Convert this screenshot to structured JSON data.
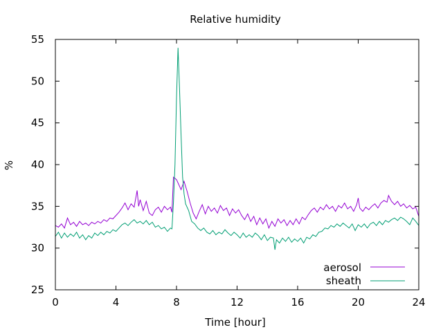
{
  "chart_data": {
    "type": "line",
    "title": "Relative humidity",
    "xlabel": "Time [hour]",
    "ylabel": "%",
    "xlim": [
      0,
      24
    ],
    "ylim": [
      25,
      55
    ],
    "xticks": [
      0,
      4,
      8,
      12,
      16,
      20,
      24
    ],
    "yticks": [
      25,
      30,
      35,
      40,
      45,
      50,
      55
    ],
    "grid": false,
    "legend_position": "bottom-right",
    "series": [
      {
        "name": "aerosol",
        "color": "#9400d3",
        "points": [
          [
            0.0,
            32.7
          ],
          [
            0.2,
            32.5
          ],
          [
            0.4,
            32.9
          ],
          [
            0.6,
            32.4
          ],
          [
            0.8,
            33.6
          ],
          [
            1.0,
            32.8
          ],
          [
            1.2,
            33.1
          ],
          [
            1.4,
            32.6
          ],
          [
            1.6,
            33.2
          ],
          [
            1.8,
            32.8
          ],
          [
            2.0,
            33.0
          ],
          [
            2.2,
            32.7
          ],
          [
            2.4,
            33.1
          ],
          [
            2.6,
            32.9
          ],
          [
            2.8,
            33.2
          ],
          [
            3.0,
            33.0
          ],
          [
            3.2,
            33.4
          ],
          [
            3.4,
            33.2
          ],
          [
            3.6,
            33.6
          ],
          [
            3.8,
            33.5
          ],
          [
            4.0,
            33.9
          ],
          [
            4.2,
            34.3
          ],
          [
            4.4,
            34.8
          ],
          [
            4.6,
            35.4
          ],
          [
            4.8,
            34.6
          ],
          [
            5.0,
            35.3
          ],
          [
            5.2,
            34.9
          ],
          [
            5.4,
            36.9
          ],
          [
            5.5,
            35.0
          ],
          [
            5.6,
            35.8
          ],
          [
            5.8,
            34.5
          ],
          [
            6.0,
            35.6
          ],
          [
            6.2,
            34.2
          ],
          [
            6.4,
            33.9
          ],
          [
            6.6,
            34.6
          ],
          [
            6.8,
            34.9
          ],
          [
            7.0,
            34.3
          ],
          [
            7.2,
            35.0
          ],
          [
            7.4,
            34.6
          ],
          [
            7.6,
            34.9
          ],
          [
            7.7,
            34.3
          ],
          [
            7.8,
            38.5
          ],
          [
            8.0,
            38.2
          ],
          [
            8.1,
            37.8
          ],
          [
            8.3,
            37.0
          ],
          [
            8.5,
            38.0
          ],
          [
            8.7,
            36.8
          ],
          [
            8.9,
            35.4
          ],
          [
            9.1,
            34.2
          ],
          [
            9.3,
            33.5
          ],
          [
            9.5,
            34.4
          ],
          [
            9.7,
            35.2
          ],
          [
            9.9,
            34.1
          ],
          [
            10.1,
            35.0
          ],
          [
            10.3,
            34.4
          ],
          [
            10.5,
            34.8
          ],
          [
            10.7,
            34.2
          ],
          [
            10.9,
            35.1
          ],
          [
            11.1,
            34.5
          ],
          [
            11.3,
            34.8
          ],
          [
            11.5,
            33.9
          ],
          [
            11.7,
            34.7
          ],
          [
            11.9,
            34.2
          ],
          [
            12.1,
            34.6
          ],
          [
            12.3,
            33.9
          ],
          [
            12.5,
            33.4
          ],
          [
            12.7,
            34.1
          ],
          [
            12.9,
            33.2
          ],
          [
            13.1,
            33.8
          ],
          [
            13.3,
            32.8
          ],
          [
            13.5,
            33.6
          ],
          [
            13.7,
            32.9
          ],
          [
            13.9,
            33.5
          ],
          [
            14.1,
            32.4
          ],
          [
            14.3,
            33.2
          ],
          [
            14.5,
            32.6
          ],
          [
            14.7,
            33.5
          ],
          [
            14.9,
            33.0
          ],
          [
            15.1,
            33.4
          ],
          [
            15.3,
            32.7
          ],
          [
            15.5,
            33.3
          ],
          [
            15.7,
            32.8
          ],
          [
            15.9,
            33.5
          ],
          [
            16.1,
            32.9
          ],
          [
            16.3,
            33.7
          ],
          [
            16.5,
            33.4
          ],
          [
            16.7,
            34.0
          ],
          [
            16.9,
            34.5
          ],
          [
            17.1,
            34.8
          ],
          [
            17.3,
            34.3
          ],
          [
            17.5,
            34.9
          ],
          [
            17.7,
            34.6
          ],
          [
            17.9,
            35.2
          ],
          [
            18.1,
            34.7
          ],
          [
            18.3,
            35.0
          ],
          [
            18.5,
            34.4
          ],
          [
            18.7,
            35.1
          ],
          [
            18.9,
            34.8
          ],
          [
            19.1,
            35.4
          ],
          [
            19.3,
            34.7
          ],
          [
            19.5,
            35.0
          ],
          [
            19.7,
            34.4
          ],
          [
            19.9,
            35.2
          ],
          [
            20.0,
            36.0
          ],
          [
            20.1,
            34.8
          ],
          [
            20.3,
            34.4
          ],
          [
            20.5,
            34.9
          ],
          [
            20.7,
            34.6
          ],
          [
            20.9,
            35.0
          ],
          [
            21.1,
            35.3
          ],
          [
            21.3,
            34.8
          ],
          [
            21.5,
            35.4
          ],
          [
            21.7,
            35.7
          ],
          [
            21.9,
            35.5
          ],
          [
            22.0,
            36.3
          ],
          [
            22.2,
            35.6
          ],
          [
            22.4,
            35.2
          ],
          [
            22.6,
            35.6
          ],
          [
            22.8,
            35.0
          ],
          [
            23.0,
            35.3
          ],
          [
            23.2,
            34.8
          ],
          [
            23.4,
            35.1
          ],
          [
            23.6,
            34.7
          ],
          [
            23.8,
            34.9
          ],
          [
            24.0,
            33.8
          ]
        ]
      },
      {
        "name": "sheath",
        "color": "#009e73",
        "points": [
          [
            0.0,
            31.4
          ],
          [
            0.2,
            31.9
          ],
          [
            0.4,
            31.2
          ],
          [
            0.6,
            31.8
          ],
          [
            0.8,
            31.3
          ],
          [
            1.0,
            31.7
          ],
          [
            1.2,
            31.4
          ],
          [
            1.4,
            31.9
          ],
          [
            1.6,
            31.2
          ],
          [
            1.8,
            31.6
          ],
          [
            2.0,
            31.0
          ],
          [
            2.2,
            31.5
          ],
          [
            2.4,
            31.2
          ],
          [
            2.6,
            31.8
          ],
          [
            2.8,
            31.5
          ],
          [
            3.0,
            31.9
          ],
          [
            3.2,
            31.6
          ],
          [
            3.4,
            32.0
          ],
          [
            3.6,
            31.8
          ],
          [
            3.8,
            32.2
          ],
          [
            4.0,
            32.0
          ],
          [
            4.2,
            32.4
          ],
          [
            4.4,
            32.8
          ],
          [
            4.6,
            33.0
          ],
          [
            4.8,
            32.7
          ],
          [
            5.0,
            33.1
          ],
          [
            5.2,
            33.4
          ],
          [
            5.4,
            33.0
          ],
          [
            5.6,
            33.2
          ],
          [
            5.8,
            32.9
          ],
          [
            6.0,
            33.3
          ],
          [
            6.2,
            32.8
          ],
          [
            6.4,
            33.1
          ],
          [
            6.6,
            32.5
          ],
          [
            6.8,
            32.7
          ],
          [
            7.0,
            32.3
          ],
          [
            7.2,
            32.5
          ],
          [
            7.4,
            32.0
          ],
          [
            7.6,
            32.4
          ],
          [
            7.7,
            32.3
          ],
          [
            7.8,
            35.5
          ],
          [
            7.9,
            40.0
          ],
          [
            8.0,
            48.0
          ],
          [
            8.1,
            54.0
          ],
          [
            8.2,
            49.0
          ],
          [
            8.3,
            43.5
          ],
          [
            8.4,
            38.5
          ],
          [
            8.5,
            36.5
          ],
          [
            8.6,
            35.3
          ],
          [
            8.8,
            34.5
          ],
          [
            9.0,
            33.2
          ],
          [
            9.2,
            32.9
          ],
          [
            9.4,
            32.4
          ],
          [
            9.6,
            32.1
          ],
          [
            9.8,
            32.4
          ],
          [
            10.0,
            31.9
          ],
          [
            10.2,
            31.7
          ],
          [
            10.4,
            32.1
          ],
          [
            10.6,
            31.6
          ],
          [
            10.8,
            31.9
          ],
          [
            11.0,
            31.7
          ],
          [
            11.2,
            32.2
          ],
          [
            11.4,
            31.8
          ],
          [
            11.6,
            31.5
          ],
          [
            11.8,
            31.9
          ],
          [
            12.0,
            31.6
          ],
          [
            12.2,
            31.2
          ],
          [
            12.4,
            31.8
          ],
          [
            12.6,
            31.3
          ],
          [
            12.8,
            31.6
          ],
          [
            13.0,
            31.3
          ],
          [
            13.2,
            31.8
          ],
          [
            13.4,
            31.5
          ],
          [
            13.6,
            31.0
          ],
          [
            13.8,
            31.6
          ],
          [
            14.0,
            30.9
          ],
          [
            14.2,
            31.3
          ],
          [
            14.4,
            31.2
          ],
          [
            14.5,
            29.8
          ],
          [
            14.6,
            31.0
          ],
          [
            14.8,
            30.6
          ],
          [
            15.0,
            31.2
          ],
          [
            15.2,
            30.8
          ],
          [
            15.4,
            31.3
          ],
          [
            15.6,
            30.7
          ],
          [
            15.8,
            31.1
          ],
          [
            16.0,
            30.8
          ],
          [
            16.2,
            31.2
          ],
          [
            16.4,
            30.6
          ],
          [
            16.6,
            31.3
          ],
          [
            16.8,
            31.1
          ],
          [
            17.0,
            31.6
          ],
          [
            17.2,
            31.4
          ],
          [
            17.4,
            31.9
          ],
          [
            17.6,
            32.0
          ],
          [
            17.8,
            32.4
          ],
          [
            18.0,
            32.3
          ],
          [
            18.2,
            32.7
          ],
          [
            18.4,
            32.5
          ],
          [
            18.6,
            32.9
          ],
          [
            18.8,
            32.6
          ],
          [
            19.0,
            33.0
          ],
          [
            19.2,
            32.7
          ],
          [
            19.4,
            32.4
          ],
          [
            19.6,
            32.9
          ],
          [
            19.8,
            32.1
          ],
          [
            20.0,
            32.8
          ],
          [
            20.2,
            32.5
          ],
          [
            20.4,
            32.9
          ],
          [
            20.6,
            32.4
          ],
          [
            20.8,
            32.9
          ],
          [
            21.0,
            33.1
          ],
          [
            21.2,
            32.7
          ],
          [
            21.4,
            33.2
          ],
          [
            21.6,
            32.8
          ],
          [
            21.8,
            33.3
          ],
          [
            22.0,
            33.1
          ],
          [
            22.2,
            33.4
          ],
          [
            22.4,
            33.6
          ],
          [
            22.6,
            33.3
          ],
          [
            22.8,
            33.7
          ],
          [
            23.0,
            33.5
          ],
          [
            23.2,
            33.2
          ],
          [
            23.4,
            32.8
          ],
          [
            23.6,
            33.6
          ],
          [
            23.8,
            33.2
          ],
          [
            24.0,
            32.7
          ]
        ]
      }
    ]
  }
}
